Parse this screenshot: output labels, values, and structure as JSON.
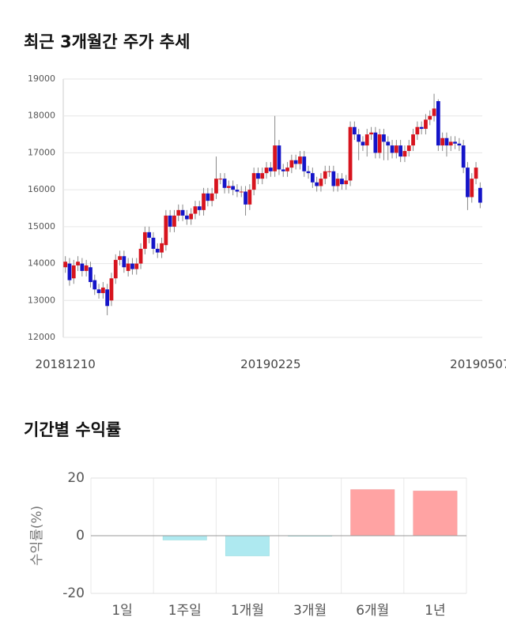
{
  "chart_data": [
    {
      "type": "candlestick",
      "title": "최근 3개월간 주가 추세",
      "categories": [
        "20181210",
        null,
        null,
        null,
        null,
        null,
        null,
        null,
        null,
        null,
        null,
        null,
        null,
        null,
        null,
        null,
        null,
        null,
        null,
        null,
        null,
        null,
        null,
        null,
        null,
        null,
        null,
        null,
        null,
        null,
        null,
        null,
        null,
        null,
        null,
        null,
        null,
        null,
        null,
        null,
        null,
        null,
        null,
        null,
        null,
        null,
        null,
        null,
        null,
        "20190225",
        null,
        null,
        null,
        null,
        null,
        null,
        null,
        null,
        null,
        null,
        null,
        null,
        null,
        null,
        null,
        null,
        null,
        null,
        null,
        null,
        null,
        null,
        null,
        null,
        null,
        null,
        null,
        null,
        null,
        null,
        null,
        null,
        null,
        null,
        null,
        null,
        null,
        null,
        null,
        null,
        null,
        null,
        null,
        null,
        null,
        null,
        null,
        null,
        null,
        "20190507"
      ],
      "open": [
        13900,
        14000,
        13600,
        13950,
        14000,
        13800,
        13900,
        13550,
        13300,
        13200,
        13300,
        13000,
        13600,
        14100,
        14200,
        13800,
        14000,
        13850,
        14000,
        14400,
        14850,
        14700,
        14400,
        14300,
        14500,
        15300,
        15000,
        15300,
        15450,
        15300,
        15200,
        15350,
        15550,
        15450,
        15900,
        15700,
        15900,
        16300,
        16300,
        16050,
        16100,
        16000,
        15950,
        15950,
        15600,
        16000,
        16450,
        16300,
        16450,
        16600,
        16500,
        17200,
        16550,
        16500,
        16600,
        16800,
        16700,
        16900,
        16500,
        16450,
        16200,
        16100,
        16300,
        16500,
        16500,
        16100,
        16300,
        16150,
        16250,
        17700,
        17500,
        17300,
        17200,
        17500,
        17550,
        17000,
        17500,
        17300,
        17200,
        17000,
        17200,
        16900,
        17050,
        17200,
        17500,
        17700,
        17650,
        17900,
        18000,
        18400,
        17200,
        17400,
        17200,
        17300,
        17250,
        17200,
        16600,
        15800,
        16300,
        16050
      ],
      "high": [
        14200,
        14150,
        14100,
        14200,
        14150,
        14100,
        14050,
        13700,
        13450,
        13500,
        13450,
        13750,
        14250,
        14350,
        14350,
        14150,
        14150,
        14150,
        14550,
        15000,
        15000,
        14850,
        14550,
        14700,
        15450,
        15450,
        15450,
        15600,
        15600,
        15450,
        15500,
        15700,
        15700,
        16050,
        16050,
        16050,
        16900,
        16450,
        16450,
        16250,
        16250,
        16150,
        16100,
        16100,
        16150,
        16600,
        16600,
        16600,
        16750,
        16750,
        18000,
        17350,
        16700,
        16750,
        16950,
        16950,
        17050,
        17050,
        16650,
        16600,
        16350,
        16450,
        16650,
        16650,
        16650,
        16450,
        16450,
        16400,
        17850,
        17850,
        17650,
        17450,
        17650,
        17700,
        17700,
        17650,
        17650,
        17450,
        17350,
        17350,
        17350,
        17200,
        17350,
        17650,
        17850,
        17850,
        18050,
        18150,
        18600,
        18450,
        17550,
        17550,
        17450,
        17450,
        17400,
        17350,
        16750,
        16450,
        16750,
        16200
      ],
      "low": [
        13750,
        13400,
        13450,
        13800,
        13650,
        13650,
        13350,
        13150,
        13050,
        13050,
        12600,
        12850,
        13450,
        13950,
        13750,
        13650,
        13700,
        13700,
        13850,
        14250,
        14550,
        14250,
        14150,
        14150,
        14350,
        14850,
        14850,
        15150,
        15150,
        15050,
        15050,
        15200,
        15300,
        15300,
        15550,
        15550,
        15750,
        16150,
        15900,
        15900,
        15850,
        15800,
        15800,
        15300,
        15450,
        15850,
        16150,
        16150,
        16300,
        16350,
        16350,
        16400,
        16350,
        16350,
        16450,
        16550,
        16550,
        16350,
        16300,
        16050,
        15950,
        15950,
        16150,
        16350,
        15950,
        15950,
        16000,
        16000,
        16100,
        17350,
        16800,
        17050,
        16900,
        17350,
        16850,
        16850,
        16800,
        16800,
        16850,
        16850,
        16750,
        16750,
        16900,
        17050,
        17350,
        17500,
        17500,
        17750,
        17850,
        17050,
        17050,
        16900,
        17050,
        17100,
        17050,
        16450,
        15450,
        15650,
        16150,
        15500
      ],
      "close": [
        14050,
        13550,
        13950,
        14050,
        13800,
        13950,
        13500,
        13300,
        13200,
        13350,
        12850,
        13600,
        14100,
        14200,
        13900,
        14000,
        13850,
        14000,
        14400,
        14850,
        14700,
        14400,
        14300,
        14550,
        15300,
        15000,
        15300,
        15450,
        15300,
        15200,
        15350,
        15550,
        15450,
        15900,
        15700,
        15900,
        16300,
        16300,
        16050,
        16100,
        16000,
        15950,
        15950,
        15600,
        16000,
        16450,
        16300,
        16450,
        16600,
        16500,
        17200,
        16550,
        16500,
        16600,
        16800,
        16700,
        16900,
        16500,
        16450,
        16200,
        16100,
        16300,
        16500,
        16500,
        16100,
        16300,
        16150,
        16250,
        17700,
        17500,
        17300,
        17200,
        17500,
        17550,
        17000,
        17500,
        17300,
        17200,
        17000,
        17200,
        16900,
        17050,
        17200,
        17500,
        17700,
        17650,
        17900,
        18000,
        18200,
        17200,
        17400,
        17200,
        17300,
        17250,
        17200,
        16600,
        15800,
        16300,
        16600,
        15650
      ],
      "up_color": "#d7141e",
      "down_color": "#1414c8",
      "ylim": [
        12000,
        19000
      ],
      "yticks": [
        12000,
        13000,
        14000,
        15000,
        16000,
        17000,
        18000,
        19000
      ],
      "grid": true
    },
    {
      "type": "bar",
      "title": "기간별 수익률",
      "y_label": "수익률(%)",
      "categories": [
        "1일",
        "1주일",
        "1개월",
        "3개월",
        "6개월",
        "1년"
      ],
      "values": [
        0,
        -1.5,
        -7,
        -0.2,
        16,
        15.5
      ],
      "positive_color": "#ffa3a3",
      "negative_color": "#aee9f0",
      "ylim": [
        -20,
        20
      ],
      "yticks": [
        -20,
        0,
        20
      ],
      "grid": true
    }
  ]
}
